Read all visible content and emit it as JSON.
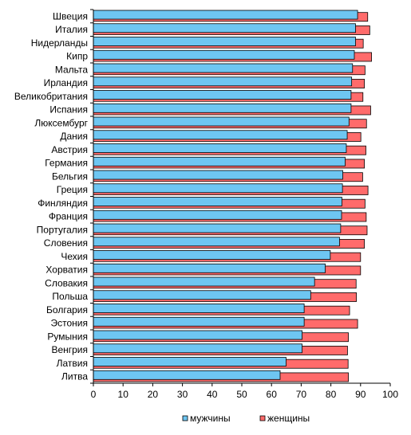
{
  "chart_data": {
    "type": "bar",
    "orientation": "horizontal",
    "categories": [
      "Швеция",
      "Италия",
      "Нидерланды",
      "Кипр",
      "Мальта",
      "Ирландия",
      "Великобритания",
      "Испания",
      "Люксембург",
      "Дания",
      "Австрия",
      "Германия",
      "Бельгия",
      "Греция",
      "Финляндия",
      "Франция",
      "Португалия",
      "Словения",
      "Чехия",
      "Хорватия",
      "Словакия",
      "Польша",
      "Болгария",
      "Эстония",
      "Румыния",
      "Венгрия",
      "Латвия",
      "Литва"
    ],
    "series": [
      {
        "name": "мужчины",
        "color": "#6EC6F2",
        "values": [
          89,
          88.3,
          88.3,
          87.9,
          87.3,
          87,
          86.8,
          86.8,
          86.1,
          85.5,
          85.2,
          84.8,
          84,
          83.9,
          83.7,
          83.6,
          83.3,
          82.9,
          79.8,
          78.1,
          74.5,
          73.2,
          71,
          71,
          70.3,
          70.3,
          64.9,
          62.9
        ]
      },
      {
        "name": "женщины",
        "color": "#FF6B6B",
        "values": [
          92.4,
          93.1,
          90.9,
          93.7,
          91.5,
          91.3,
          90.8,
          93.4,
          92,
          90.1,
          91.8,
          91.3,
          90.7,
          92.5,
          91.5,
          91.9,
          92.2,
          91.3,
          90,
          90,
          88.5,
          88.6,
          86.3,
          89,
          85.9,
          85.6,
          85.8,
          85.9
        ]
      }
    ],
    "xlim": [
      0,
      100
    ],
    "xticks": [
      0,
      10,
      20,
      30,
      40,
      50,
      60,
      70,
      80,
      90,
      100
    ],
    "grid": false,
    "legend_position": "bottom"
  }
}
